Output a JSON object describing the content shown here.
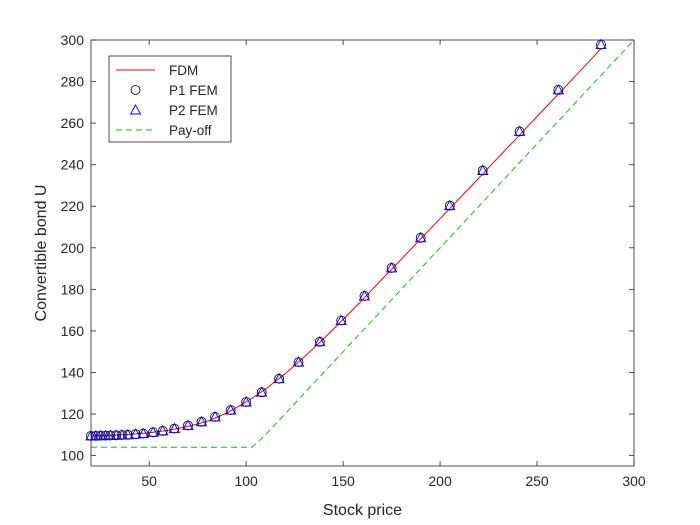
{
  "chart_data": {
    "type": "line",
    "title": "",
    "xlabel": "Stock price",
    "ylabel": "Convertible bond U",
    "xlim": [
      20,
      300
    ],
    "ylim": [
      95,
      300
    ],
    "xticks": [
      50,
      100,
      150,
      200,
      250,
      300
    ],
    "yticks": [
      100,
      120,
      140,
      160,
      180,
      200,
      220,
      240,
      260,
      280,
      300
    ],
    "grid": false,
    "legend_position": "top-left",
    "colors": {
      "fdm": "#ff0000",
      "p1": "#000000",
      "p2": "#0000ff",
      "payoff": "#00cc00",
      "axes": "#262626"
    },
    "series": [
      {
        "name": "FDM",
        "style": "line",
        "x": [
          20,
          30,
          40,
          50,
          60,
          70,
          80,
          90,
          100,
          110,
          120,
          130,
          140,
          150,
          160,
          170,
          180,
          190,
          200,
          210,
          220,
          230,
          240,
          250,
          260,
          270,
          280,
          283
        ],
        "y": [
          109.5,
          109.8,
          110.2,
          111.0,
          112.2,
          114.0,
          116.5,
          120.5,
          125.8,
          132.0,
          139.3,
          147.5,
          156.3,
          165.5,
          175.0,
          184.8,
          194.5,
          204.3,
          214.0,
          223.8,
          233.6,
          243.5,
          253.3,
          263.2,
          273.0,
          282.9,
          292.8,
          296.0
        ]
      },
      {
        "name": "P1 FEM",
        "style": "circle",
        "x": [
          20,
          22.5,
          25,
          27.5,
          30,
          33,
          36,
          39,
          43,
          47,
          52,
          57,
          63,
          70,
          77,
          84,
          92,
          100,
          108,
          117,
          127,
          138,
          149,
          161,
          175,
          190,
          205,
          222,
          241,
          261,
          283
        ],
        "y": [
          109.5,
          109.5,
          109.6,
          109.6,
          109.7,
          109.8,
          109.9,
          110.0,
          110.3,
          110.6,
          111.2,
          111.9,
          113.0,
          114.5,
          116.3,
          118.6,
          121.9,
          125.8,
          130.5,
          137.0,
          145.0,
          154.8,
          165.0,
          176.8,
          190.3,
          204.8,
          220.3,
          237.2,
          256.0,
          276.0,
          297.8
        ]
      },
      {
        "name": "P2 FEM",
        "style": "triangle",
        "x": [
          20,
          22.5,
          25,
          27.5,
          30,
          33,
          36,
          39,
          43,
          47,
          52,
          57,
          63,
          70,
          77,
          84,
          92,
          100,
          108,
          117,
          127,
          138,
          149,
          161,
          175,
          190,
          205,
          222,
          241,
          261,
          283
        ],
        "y": [
          109.5,
          109.5,
          109.6,
          109.6,
          109.7,
          109.8,
          109.9,
          110.0,
          110.3,
          110.6,
          111.2,
          111.9,
          113.0,
          114.5,
          116.3,
          118.6,
          121.9,
          125.8,
          130.5,
          137.0,
          145.0,
          154.8,
          165.0,
          176.8,
          190.3,
          204.8,
          220.3,
          237.2,
          256.0,
          276.0,
          297.8
        ]
      },
      {
        "name": "Pay-off",
        "style": "dashed",
        "x": [
          20,
          103,
          110,
          300
        ],
        "y": [
          104,
          104,
          110,
          300
        ]
      }
    ]
  }
}
